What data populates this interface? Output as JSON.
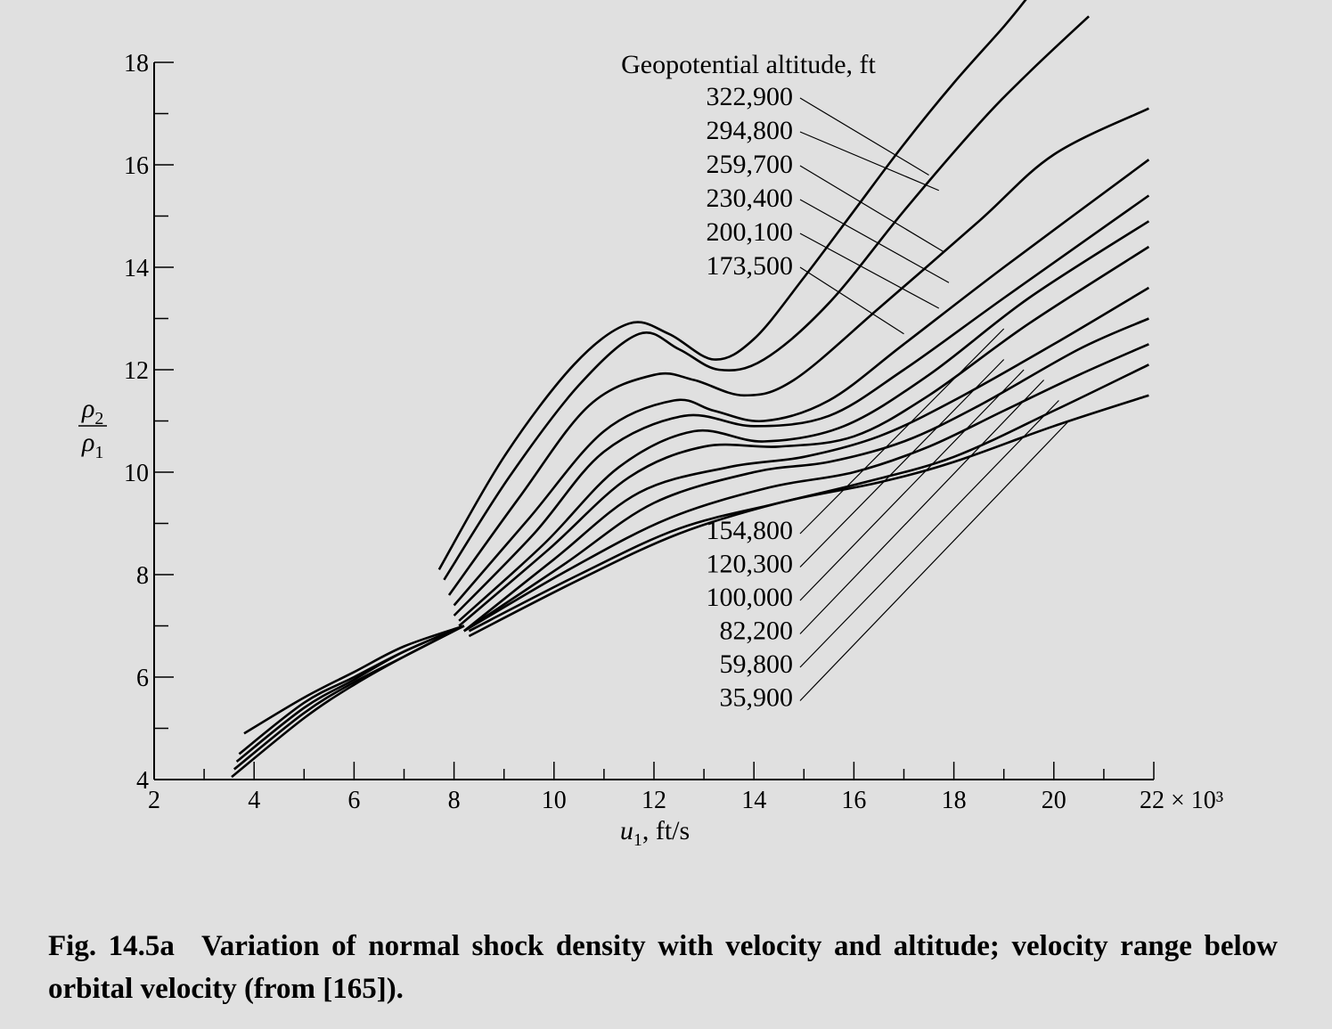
{
  "chart_data": {
    "type": "line",
    "legend_title": "Geopotential altitude, ft",
    "xlabel_var": "u",
    "xlabel_sub": "1",
    "xlabel_unit": ", ft/s",
    "xtick_labels": [
      "2",
      "4",
      "6",
      "8",
      "10",
      "12",
      "14",
      "16",
      "18",
      "20",
      "22 × 10³"
    ],
    "ylabel_num_var": "ρ",
    "ylabel_num_sub": "2",
    "ylabel_den_var": "ρ",
    "ylabel_den_sub": "1",
    "ytick_labels": [
      "4",
      "6",
      "8",
      "10",
      "12",
      "14",
      "16",
      "18"
    ],
    "xlim": [
      2,
      22
    ],
    "ylim": [
      4,
      18
    ],
    "x_multiplier": 1000,
    "grid": false,
    "series": [
      {
        "name": "322,900",
        "label_group": "upper",
        "leader_target": [
          17.5,
          15.8
        ],
        "points": [
          [
            7.7,
            8.1
          ],
          [
            9.0,
            10.3
          ],
          [
            10.4,
            12.1
          ],
          [
            11.5,
            12.9
          ],
          [
            12.3,
            12.7
          ],
          [
            13.2,
            12.2
          ],
          [
            14.0,
            12.6
          ],
          [
            15.0,
            13.8
          ],
          [
            16.0,
            15.1
          ],
          [
            17.0,
            16.4
          ],
          [
            18.0,
            17.6
          ],
          [
            19.0,
            18.7
          ],
          [
            19.5,
            19.3
          ]
        ]
      },
      {
        "name": "294,800",
        "label_group": "upper",
        "leader_target": [
          17.7,
          15.5
        ],
        "points": [
          [
            7.8,
            7.9
          ],
          [
            9.1,
            9.9
          ],
          [
            10.5,
            11.7
          ],
          [
            11.7,
            12.7
          ],
          [
            12.5,
            12.4
          ],
          [
            13.3,
            12.0
          ],
          [
            14.2,
            12.2
          ],
          [
            15.5,
            13.3
          ],
          [
            17.0,
            15.1
          ],
          [
            18.5,
            16.8
          ],
          [
            19.5,
            17.8
          ],
          [
            20.7,
            18.9
          ]
        ]
      },
      {
        "name": "259,700",
        "label_group": "upper",
        "leader_target": [
          17.8,
          14.3
        ],
        "points": [
          [
            7.9,
            7.6
          ],
          [
            9.3,
            9.5
          ],
          [
            10.7,
            11.3
          ],
          [
            12.0,
            11.9
          ],
          [
            12.8,
            11.8
          ],
          [
            13.8,
            11.5
          ],
          [
            14.8,
            11.8
          ],
          [
            16.5,
            13.2
          ],
          [
            18.5,
            14.9
          ],
          [
            20.0,
            16.2
          ],
          [
            21.9,
            17.1
          ]
        ]
      },
      {
        "name": "230,400",
        "label_group": "upper",
        "leader_target": [
          17.9,
          13.7
        ],
        "points": [
          [
            8.0,
            7.4
          ],
          [
            9.5,
            9.1
          ],
          [
            11.0,
            10.8
          ],
          [
            12.4,
            11.4
          ],
          [
            13.2,
            11.2
          ],
          [
            14.2,
            11.0
          ],
          [
            15.5,
            11.4
          ],
          [
            17.0,
            12.5
          ],
          [
            19.0,
            14.0
          ],
          [
            21.9,
            16.1
          ]
        ]
      },
      {
        "name": "200,100",
        "label_group": "upper",
        "leader_target": [
          17.7,
          13.2
        ],
        "points": [
          [
            8.0,
            7.2
          ],
          [
            9.6,
            8.8
          ],
          [
            11.0,
            10.4
          ],
          [
            12.6,
            11.1
          ],
          [
            14.0,
            10.9
          ],
          [
            15.5,
            11.1
          ],
          [
            17.0,
            12.0
          ],
          [
            19.0,
            13.4
          ],
          [
            21.9,
            15.4
          ]
        ]
      },
      {
        "name": "173,500",
        "label_group": "upper",
        "leader_target": [
          17.0,
          12.7
        ],
        "points": [
          [
            8.1,
            7.1
          ],
          [
            9.8,
            8.6
          ],
          [
            11.3,
            10.1
          ],
          [
            12.8,
            10.8
          ],
          [
            14.2,
            10.6
          ],
          [
            15.8,
            10.9
          ],
          [
            17.5,
            11.9
          ],
          [
            19.5,
            13.4
          ],
          [
            21.9,
            14.9
          ]
        ]
      },
      {
        "name": "154,800",
        "label_group": "lower",
        "leader_target": [
          19.0,
          12.8
        ],
        "points": [
          [
            8.1,
            7.0
          ],
          [
            9.9,
            8.5
          ],
          [
            11.5,
            9.9
          ],
          [
            13.0,
            10.5
          ],
          [
            14.5,
            10.5
          ],
          [
            16.0,
            10.7
          ],
          [
            17.5,
            11.5
          ],
          [
            19.5,
            12.9
          ],
          [
            21.9,
            14.4
          ]
        ]
      },
      {
        "name": "120,300",
        "label_group": "lower",
        "leader_target": [
          19.0,
          12.2
        ],
        "points": [
          [
            8.2,
            6.9
          ],
          [
            10.0,
            8.3
          ],
          [
            11.7,
            9.6
          ],
          [
            13.5,
            10.1
          ],
          [
            15.0,
            10.3
          ],
          [
            16.5,
            10.7
          ],
          [
            18.0,
            11.4
          ],
          [
            20.0,
            12.5
          ],
          [
            21.9,
            13.6
          ]
        ]
      },
      {
        "name": "100,000",
        "label_group": "lower",
        "leader_target": [
          19.4,
          12.0
        ],
        "points": [
          [
            8.2,
            6.9
          ],
          [
            10.2,
            8.2
          ],
          [
            12.0,
            9.4
          ],
          [
            14.0,
            10.0
          ],
          [
            15.5,
            10.2
          ],
          [
            17.0,
            10.6
          ],
          [
            18.5,
            11.3
          ],
          [
            20.5,
            12.4
          ],
          [
            21.9,
            13.0
          ]
        ]
      },
      {
        "name": "82,200",
        "label_group": "lower",
        "leader_target": [
          19.8,
          11.8
        ],
        "points": [
          [
            8.2,
            6.9
          ],
          [
            10.3,
            8.1
          ],
          [
            12.3,
            9.1
          ],
          [
            14.3,
            9.7
          ],
          [
            16.0,
            10.0
          ],
          [
            17.5,
            10.5
          ],
          [
            19.0,
            11.2
          ],
          [
            20.5,
            11.9
          ],
          [
            21.9,
            12.5
          ]
        ]
      },
      {
        "name": "59,800",
        "label_group": "lower",
        "leader_target": [
          20.1,
          11.4
        ],
        "points": [
          [
            8.3,
            6.9
          ],
          [
            10.5,
            8.0
          ],
          [
            12.5,
            8.9
          ],
          [
            14.5,
            9.4
          ],
          [
            16.2,
            9.8
          ],
          [
            18.0,
            10.3
          ],
          [
            20.0,
            11.2
          ],
          [
            21.9,
            12.1
          ]
        ]
      },
      {
        "name": "35,900",
        "label_group": "lower",
        "leader_target": [
          20.3,
          11.0
        ],
        "points": [
          [
            8.3,
            6.8
          ],
          [
            10.5,
            7.9
          ],
          [
            12.5,
            8.8
          ],
          [
            14.5,
            9.4
          ],
          [
            16.5,
            9.8
          ],
          [
            18.0,
            10.2
          ],
          [
            20.0,
            10.9
          ],
          [
            21.9,
            11.5
          ]
        ]
      }
    ],
    "low_velocity_segments": [
      [
        [
          3.8,
          4.9
        ],
        [
          5.0,
          5.6
        ],
        [
          6.0,
          6.1
        ],
        [
          7.0,
          6.6
        ],
        [
          8.2,
          7.0
        ]
      ],
      [
        [
          3.7,
          4.5
        ],
        [
          5.0,
          5.5
        ],
        [
          6.0,
          6.0
        ],
        [
          7.0,
          6.5
        ],
        [
          8.2,
          7.0
        ]
      ],
      [
        [
          3.65,
          4.35
        ],
        [
          5.0,
          5.4
        ],
        [
          6.0,
          5.95
        ],
        [
          7.0,
          6.5
        ],
        [
          8.2,
          7.0
        ]
      ],
      [
        [
          3.6,
          4.2
        ],
        [
          5.0,
          5.3
        ],
        [
          6.0,
          5.9
        ],
        [
          7.0,
          6.4
        ],
        [
          8.2,
          7.0
        ]
      ],
      [
        [
          3.55,
          4.05
        ],
        [
          5.0,
          5.2
        ],
        [
          6.0,
          5.85
        ],
        [
          7.0,
          6.4
        ],
        [
          8.2,
          7.0
        ]
      ]
    ]
  },
  "caption": {
    "fig_number": "Fig. 14.5a",
    "text": "Variation of normal shock density with velocity and altitude; velocity range below orbital velocity (from [165])."
  }
}
